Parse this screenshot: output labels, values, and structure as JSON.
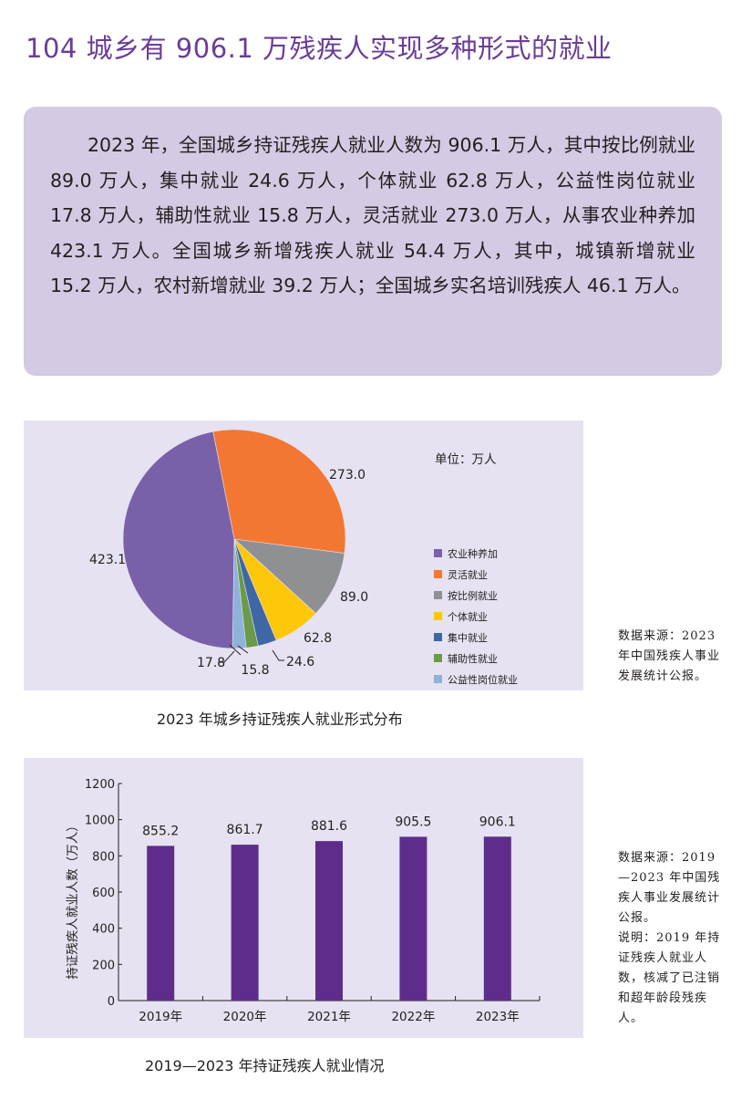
{
  "page": {
    "title": "104  城乡有 906.1 万残疾人实现多种形式的就业",
    "summary": "2023 年，全国城乡持证残疾人就业人数为 906.1 万人，其中按比例就业 89.0 万人，集中就业 24.6 万人，个体就业 62.8 万人，公益性岗位就业 17.8 万人，辅助性就业 15.8 万人，灵活就业 273.0 万人，从事农业种养加 423.1 万人。全国城乡新增残疾人就业 54.4 万人，其中，城镇新增就业 15.2 万人，农村新增就业 39.2 万人；全国城乡实名培训残疾人 46.1 万人。"
  },
  "pie_section": {
    "unit_label": "单位：万人",
    "caption": "2023 年城乡持证残疾人就业形式分布",
    "source_note": "数据来源：2023 年中国残疾人事业发展统计公报。"
  },
  "bar_section": {
    "caption": "2019—2023 年持证残疾人就业情况",
    "source_note": "数据来源：2019—2023 年中国残疾人事业发展统计公报。",
    "explanation_note": "说明：2019 年持证残疾人就业人数，核减了已注销和超年龄段残疾人。"
  },
  "colors": {
    "title": "#6a3d96",
    "summary_bg": "#d4cae3",
    "panel_bg": "#e6e2f1",
    "bar": "#5e2d8c"
  },
  "chart_data": [
    {
      "type": "pie",
      "title": "2023 年城乡持证残疾人就业形式分布",
      "unit": "万人",
      "legend_position": "right",
      "categories": [
        "农业种养加",
        "灵活就业",
        "按比例就业",
        "个体就业",
        "集中就业",
        "辅助性就业",
        "公益性岗位就业"
      ],
      "values": [
        423.1,
        273.0,
        89.0,
        62.8,
        24.6,
        15.8,
        17.8
      ],
      "labels": [
        "423.1",
        "273.0",
        "89.0",
        "62.8",
        "24.6",
        "15.8",
        "17.8"
      ],
      "colors": [
        "#7961aa",
        "#f37732",
        "#8f9093",
        "#fdc70a",
        "#3f67a5",
        "#6a9a4a",
        "#8eb2d8"
      ]
    },
    {
      "type": "bar",
      "title": "2019—2023 年持证残疾人就业情况",
      "xlabel": "",
      "ylabel": "持证残疾人就业人数（万人）",
      "categories": [
        "2019年",
        "2020年",
        "2021年",
        "2022年",
        "2023年"
      ],
      "values": [
        855.2,
        861.7,
        881.6,
        905.5,
        906.1
      ],
      "labels": [
        "855.2",
        "861.7",
        "881.6",
        "905.5",
        "906.1"
      ],
      "yticks": [
        "0",
        "200",
        "400",
        "600",
        "800",
        "1000",
        "1200"
      ],
      "ylim": [
        0,
        1200
      ],
      "grid": false,
      "color": "#5e2d8c"
    }
  ]
}
